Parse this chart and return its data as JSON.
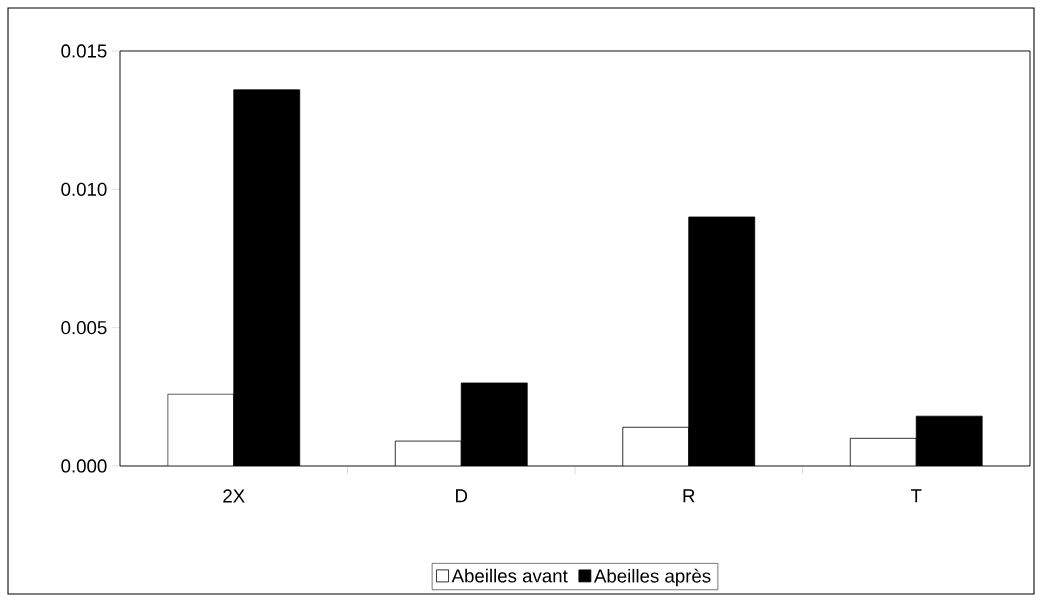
{
  "chart_data": {
    "type": "bar",
    "categories": [
      "2X",
      "D",
      "R",
      "T"
    ],
    "series": [
      {
        "name": "Abeilles avant",
        "color": "#ffffff",
        "values": [
          0.0026,
          0.0009,
          0.0014,
          0.001
        ]
      },
      {
        "name": "Abeilles après",
        "color": "#000000",
        "values": [
          0.0136,
          0.003,
          0.009,
          0.0018
        ]
      }
    ],
    "ylim": [
      0,
      0.015
    ],
    "yticks": [
      {
        "value": 0,
        "label": "0.000"
      },
      {
        "value": 0.005,
        "label": "0.005"
      },
      {
        "value": 0.01,
        "label": "0.010"
      },
      {
        "value": 0.015,
        "label": "0.015"
      }
    ],
    "grid": false,
    "legend": "bottom"
  }
}
